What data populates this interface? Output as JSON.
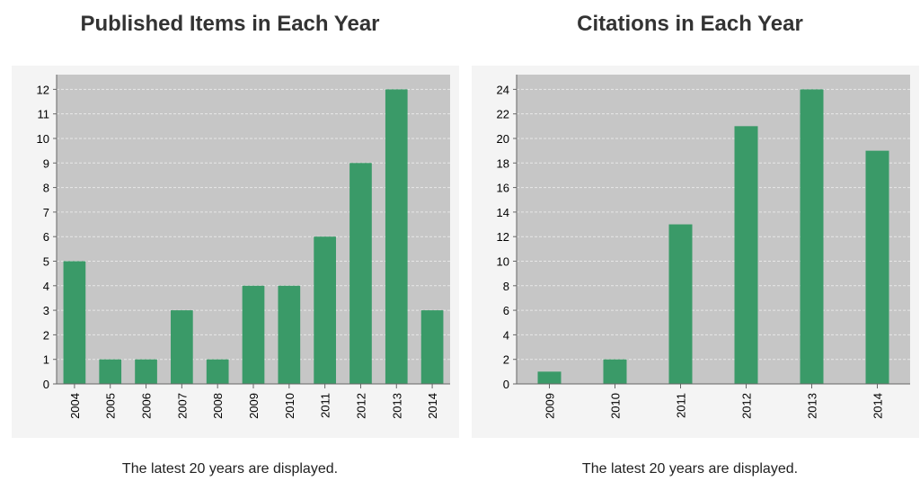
{
  "colors": {
    "bar": "#3a9a68",
    "plot_background": "#c6c6c6",
    "chart_background": "#f4f4f4",
    "gridline": "#e8e8e8",
    "axis": "#666666"
  },
  "chart_data": [
    {
      "type": "bar",
      "title": "Published Items in Each Year",
      "xlabel": "",
      "ylabel": "",
      "categories": [
        "2004",
        "2005",
        "2006",
        "2007",
        "2008",
        "2009",
        "2010",
        "2011",
        "2012",
        "2013",
        "2014"
      ],
      "values": [
        5,
        1,
        1,
        3,
        1,
        4,
        4,
        6,
        9,
        12,
        3
      ],
      "ylim": [
        0,
        12.6
      ],
      "yticks": [
        0,
        1,
        2,
        3,
        4,
        5,
        6,
        7,
        8,
        9,
        10,
        11,
        12
      ],
      "grid": true,
      "note": "The latest 20 years are displayed."
    },
    {
      "type": "bar",
      "title": "Citations in Each Year",
      "xlabel": "",
      "ylabel": "",
      "categories": [
        "2009",
        "2010",
        "2011",
        "2012",
        "2013",
        "2014"
      ],
      "values": [
        1,
        2,
        13,
        21,
        24,
        19
      ],
      "ylim": [
        0,
        25.2
      ],
      "yticks": [
        0,
        2,
        4,
        6,
        8,
        10,
        12,
        14,
        16,
        18,
        20,
        22,
        24
      ],
      "grid": true,
      "note": "The latest 20 years are displayed."
    }
  ]
}
